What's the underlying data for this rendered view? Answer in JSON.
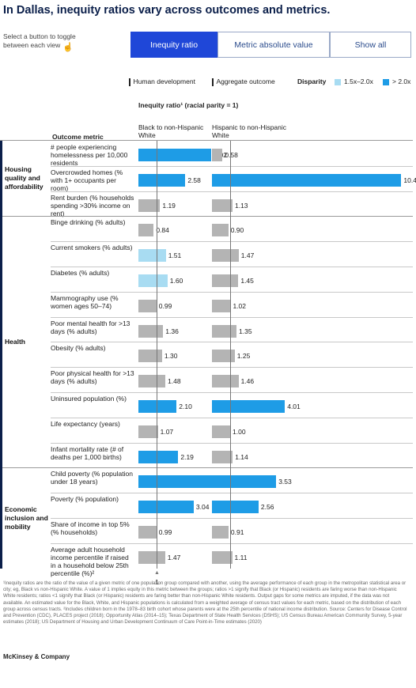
{
  "title": "In Dallas, inequity ratios vary across outcomes and metrics.",
  "instruction": "Select a button to toggle between each view",
  "buttons": [
    {
      "label": "Inequity ratio",
      "active": true
    },
    {
      "label": "Metric absolute value",
      "active": false
    },
    {
      "label": "Show all",
      "active": false
    }
  ],
  "legend": {
    "human_development": "Human development",
    "aggregate_outcome": "Aggregate outcome",
    "disparity_label": "Disparity",
    "low_label": "1.5x–2.0x",
    "high_label": "> 2.0x",
    "colors": {
      "low": "#a8dcf2",
      "high": "#1e9ce6",
      "base": "#b4b4b4"
    }
  },
  "axis_title": "Inequity ratio¹ (racial parity = 1)",
  "outcome_header": "Outcome metric",
  "parity_tick": "1",
  "footnote": "¹Inequity ratios are the ratio of the value of a given metric of one population group compared with another, using the average performance of each group in the metropolitan statistical area or city; eg, Black vs non-Hispanic White. A value of 1 implies equity in this metric between the groups; ratios >1 signify that Black (or Hispanic) residents are faring worse than non-Hispanic White residents; ratios <1 signify that Black (or Hispanic) residents are faring better than non-Hispanic White residents. Output gaps for some metrics are imputed, if the data was not available. An estimated value for the Black, White, and Hispanic populations is calculated from a weighted average of census tract values for each metric, based on the distribution of each group across census tracts. ²Includes children born in the 1978–83 birth cohort whose parents were at the 25th percentile of national income distribution. Source: Centers for Disease Control and Prevention (CDC), PLACES project (2018); Opportunity Atlas (2014–15); Texas Department of State Health Services (DSHS); US Census Bureau American Community Survey, 5-year estimates (2018); US Department of Housing and Urban Development Continuum of Care Point-in-Time estimates (2020)",
  "brand": "McKinsey & Company",
  "chart_data": {
    "type": "bar",
    "orientation": "horizontal",
    "reference_value": 1,
    "series": [
      {
        "name": "Black to non-Hispanic White"
      },
      {
        "name": "Hispanic to non-Hispanic White"
      }
    ],
    "categories": [
      {
        "label": "Housing quality and affordability",
        "metrics": [
          {
            "label": "# people experiencing homelessness per 10,000 residents",
            "values": [
              4.02,
              0.58
            ]
          },
          {
            "label": "Overcrowded homes (% with 1+ occupants per room)",
            "values": [
              2.58,
              10.41
            ]
          },
          {
            "label": "Rent burden (% households spending >30% income on rent)",
            "values": [
              1.19,
              1.13
            ]
          }
        ]
      },
      {
        "label": "Health",
        "metrics": [
          {
            "label": "Binge drinking (% adults)",
            "values": [
              0.84,
              0.9
            ]
          },
          {
            "label": "Current smokers (% adults)",
            "values": [
              1.51,
              1.47
            ]
          },
          {
            "label": "Diabetes (% adults)",
            "values": [
              1.6,
              1.45
            ]
          },
          {
            "label": "Mammography use (% women ages 50–74)",
            "values": [
              0.99,
              1.02
            ]
          },
          {
            "label": "Poor mental health for >13 days (% adults)",
            "values": [
              1.36,
              1.35
            ]
          },
          {
            "label": "Obesity (% adults)",
            "values": [
              1.3,
              1.25
            ]
          },
          {
            "label": "Poor physical health for >13 days (% adults)",
            "values": [
              1.48,
              1.46
            ]
          },
          {
            "label": "Uninsured population (%)",
            "values": [
              2.1,
              4.01
            ]
          },
          {
            "label": "Life expectancy (years)",
            "values": [
              1.07,
              1.0
            ]
          },
          {
            "label": "Infant mortality rate (# of deaths per 1,000 births)",
            "values": [
              2.19,
              1.14
            ]
          }
        ]
      },
      {
        "label": "Economic inclusion and mobility",
        "metrics": [
          {
            "label": "Child poverty (% population under 18 years)",
            "values": [
              4.45,
              3.53
            ]
          },
          {
            "label": "Poverty (% population)",
            "values": [
              3.04,
              2.56
            ]
          },
          {
            "label": "Share of income in top 5% (% households)",
            "values": [
              0.99,
              0.91
            ]
          },
          {
            "label": "Average adult household income percentile if raised in a household below 25th percentile (%)²",
            "values": [
              1.47,
              1.11
            ]
          }
        ]
      }
    ]
  }
}
